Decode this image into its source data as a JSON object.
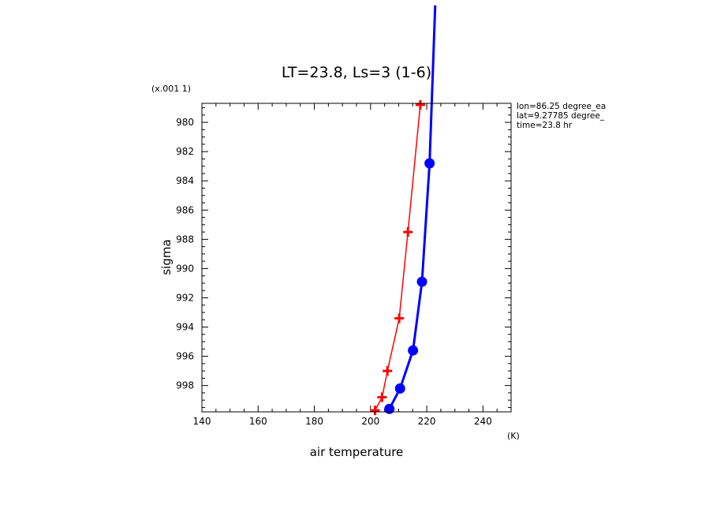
{
  "chart_data": {
    "type": "line",
    "title": "LT=23.8, Ls=3 (1-6)",
    "xlabel": "air temperature",
    "ylabel": "sigma",
    "x_unit": "(K)",
    "y_scale_note": "(x.001 1)",
    "xlim": [
      140,
      250
    ],
    "ylim": [
      978.7,
      999.8
    ],
    "y_inverted": true,
    "x_ticks": [
      140,
      160,
      180,
      200,
      220,
      240
    ],
    "x_tick_labels": [
      "140",
      "160",
      "180",
      "200",
      "220",
      "240"
    ],
    "y_ticks": [
      980,
      982,
      984,
      986,
      988,
      990,
      992,
      994,
      996,
      998
    ],
    "y_tick_labels": [
      "980",
      "982",
      "984",
      "986",
      "988",
      "990",
      "992",
      "994",
      "996",
      "998"
    ],
    "info": [
      "lon=86.25 degree_ea",
      "lat=9.27785 degree_",
      "time=23.8 hr"
    ],
    "series": [
      {
        "color": "#ff0000",
        "marker": "plus",
        "line_style": "solid-thin",
        "points": [
          {
            "x": 217.7,
            "y": 978.8
          },
          {
            "x": 213.3,
            "y": 987.5
          },
          {
            "x": 210.2,
            "y": 993.4
          },
          {
            "x": 206.0,
            "y": 997.0
          },
          {
            "x": 204.1,
            "y": 998.8
          },
          {
            "x": 201.6,
            "y": 999.7
          }
        ]
      },
      {
        "color": "#0000ff",
        "marker": "circle",
        "line_style": "solid-thick",
        "points": [
          {
            "x": 223.0,
            "y": 972.0
          },
          {
            "x": 221.0,
            "y": 982.8
          },
          {
            "x": 218.3,
            "y": 990.9
          },
          {
            "x": 215.1,
            "y": 995.6
          },
          {
            "x": 210.5,
            "y": 998.2
          },
          {
            "x": 206.7,
            "y": 999.6
          }
        ]
      }
    ]
  }
}
